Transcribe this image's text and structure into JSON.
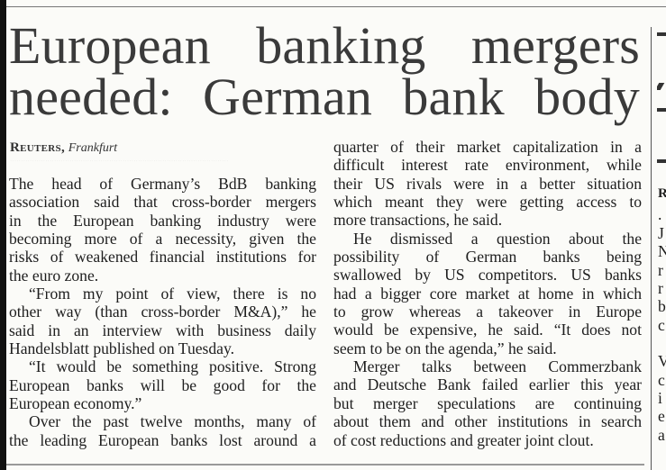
{
  "article": {
    "headline": [
      "European banking mergers",
      "needed: German bank body"
    ],
    "byline": {
      "source": "Reuters,",
      "location": "Frankfurt"
    },
    "dots": "...................................................................................................",
    "left_column": [
      "The head of Germany’s BdB banking",
      "association said that cross-border mergers",
      "in the European banking industry were",
      "becoming more of a necessity, given the",
      "risks of weakened financial institutions for",
      "the euro zone.",
      "“From my point of view, there is no",
      "other way (than cross-border M&A),” he",
      "said in an interview with business daily",
      "Handelsblatt published on Tuesday.",
      "“It would be something positive. Strong",
      "European banks will be good for the",
      "European economy.”",
      "Over the past twelve months, many of",
      "the leading European banks lost around a"
    ],
    "right_column": [
      "quarter of their market capitalization in a",
      "difficult interest rate environment, while",
      "their US rivals were in a better situation",
      "which meant they were getting access to",
      "more transactions, he said.",
      "He dismissed a question about the",
      "possibility of German banks being",
      "swallowed by US competitors. US banks",
      "had a bigger core market at home in which",
      "to grow whereas a takeover in Europe",
      "would be expensive, he said. “It does not",
      "seem to be on the agenda,” he said.",
      "Merger talks between Commerzbank",
      "and Deutsche Bank failed earlier this year",
      "but merger speculations are continuing",
      "about them and other institutions in search",
      "of cost reductions and greater joint clout."
    ]
  },
  "adjacent_fragment": [
    "R",
    ".",
    "J",
    "N",
    "r",
    "r",
    "b",
    "c",
    "",
    "V",
    "c",
    "i",
    "e",
    "a"
  ]
}
